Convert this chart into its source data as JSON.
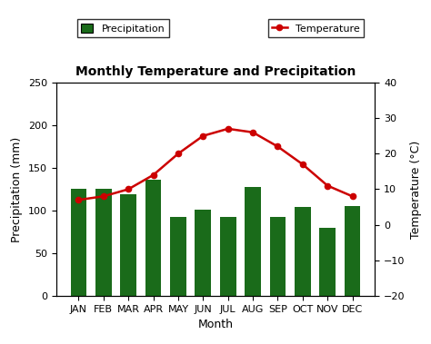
{
  "months": [
    "JAN",
    "FEB",
    "MAR",
    "APR",
    "MAY",
    "JUN",
    "JUL",
    "AUG",
    "SEP",
    "OCT",
    "NOV",
    "DEC"
  ],
  "precipitation": [
    126,
    126,
    119,
    136,
    93,
    101,
    93,
    128,
    93,
    104,
    80,
    105
  ],
  "temperature": [
    7,
    8,
    10,
    14,
    20,
    25,
    27,
    26,
    22,
    17,
    11,
    8
  ],
  "bar_color": "#1a6b1a",
  "line_color": "#cc0000",
  "marker_color": "#cc0000",
  "title": "Monthly Temperature and Precipitation",
  "xlabel": "Month",
  "ylabel_left": "Precipitation (mm)",
  "ylabel_right": "Temperature (°C)",
  "ylim_left": [
    0,
    250
  ],
  "ylim_right": [
    -20,
    40
  ],
  "yticks_left": [
    0,
    50,
    100,
    150,
    200,
    250
  ],
  "yticks_right": [
    -20,
    -10,
    0,
    10,
    20,
    30,
    40
  ],
  "legend_precip_label": "Precipitation",
  "legend_temp_label": "Temperature",
  "background_color": "#ffffff",
  "title_fontsize": 10,
  "axis_fontsize": 9,
  "tick_fontsize": 8,
  "legend_fontsize": 8
}
